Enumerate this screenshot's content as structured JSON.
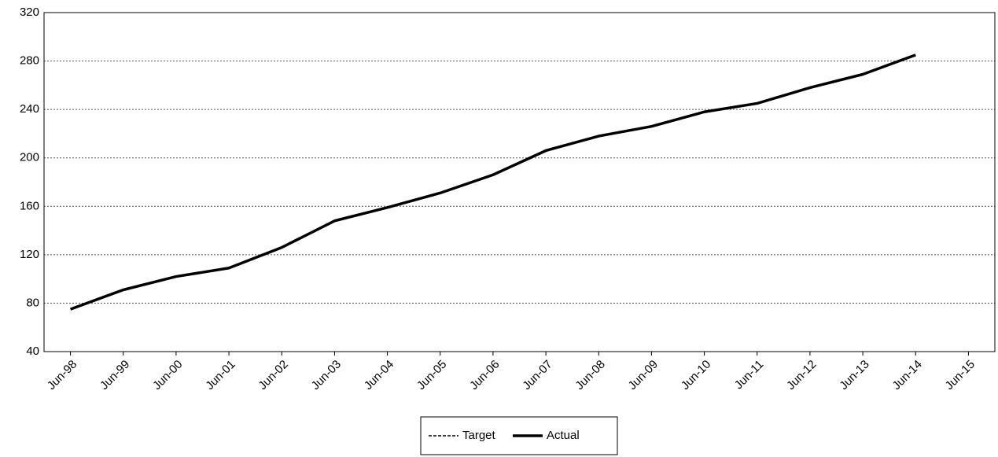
{
  "chart_data": {
    "type": "line",
    "categories": [
      "Jun-98",
      "Jun-99",
      "Jun-00",
      "Jun-01",
      "Jun-02",
      "Jun-03",
      "Jun-04",
      "Jun-05",
      "Jun-06",
      "Jun-07",
      "Jun-08",
      "Jun-09",
      "Jun-10",
      "Jun-11",
      "Jun-12",
      "Jun-13",
      "Jun-14",
      "Jun-15"
    ],
    "series": [
      {
        "name": "Target",
        "color": "#000000",
        "dashed": true,
        "values": [
          null,
          null,
          null,
          null,
          null,
          null,
          null,
          null,
          null,
          null,
          null,
          null,
          null,
          null,
          null,
          null,
          null,
          null
        ]
      },
      {
        "name": "Actual",
        "color": "#000000",
        "dashed": false,
        "values": [
          75,
          91,
          102,
          109,
          126,
          148,
          159,
          171,
          186,
          206,
          218,
          226,
          238,
          245,
          258,
          269,
          285,
          null
        ]
      }
    ],
    "ylim": [
      40,
      320
    ],
    "yticks": [
      40,
      80,
      120,
      160,
      200,
      240,
      280,
      320
    ],
    "grid": true,
    "legend": "bottom"
  }
}
